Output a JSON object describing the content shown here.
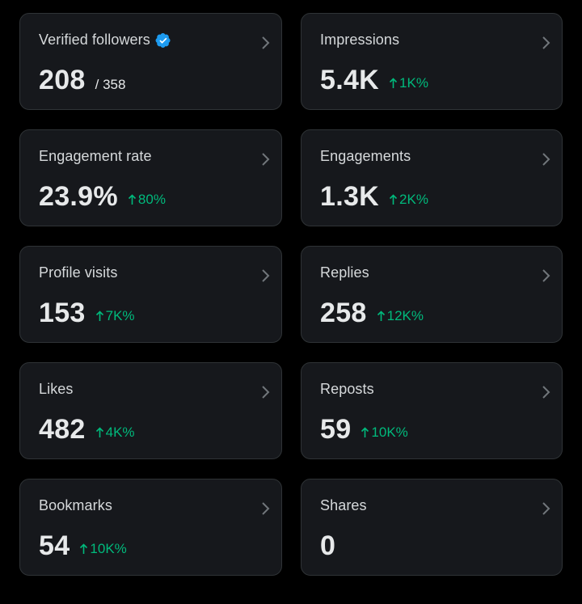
{
  "colors": {
    "background": "#000000",
    "card": "#16181c",
    "border": "#2f3336",
    "text": "#e7e9ea",
    "positive": "#00ba7c",
    "verified": "#1d9bf0"
  },
  "cards": [
    {
      "title": "Verified followers",
      "value": "208",
      "sub": "/ 358",
      "icon": "verified-badge-icon"
    },
    {
      "title": "Impressions",
      "value": "5.4K",
      "delta": "1K%"
    },
    {
      "title": "Engagement rate",
      "value": "23.9%",
      "delta": "80%"
    },
    {
      "title": "Engagements",
      "value": "1.3K",
      "delta": "2K%"
    },
    {
      "title": "Profile visits",
      "value": "153",
      "delta": "7K%"
    },
    {
      "title": "Replies",
      "value": "258",
      "delta": "12K%"
    },
    {
      "title": "Likes",
      "value": "482",
      "delta": "4K%"
    },
    {
      "title": "Reposts",
      "value": "59",
      "delta": "10K%"
    },
    {
      "title": "Bookmarks",
      "value": "54",
      "delta": "10K%"
    },
    {
      "title": "Shares",
      "value": "0"
    }
  ]
}
